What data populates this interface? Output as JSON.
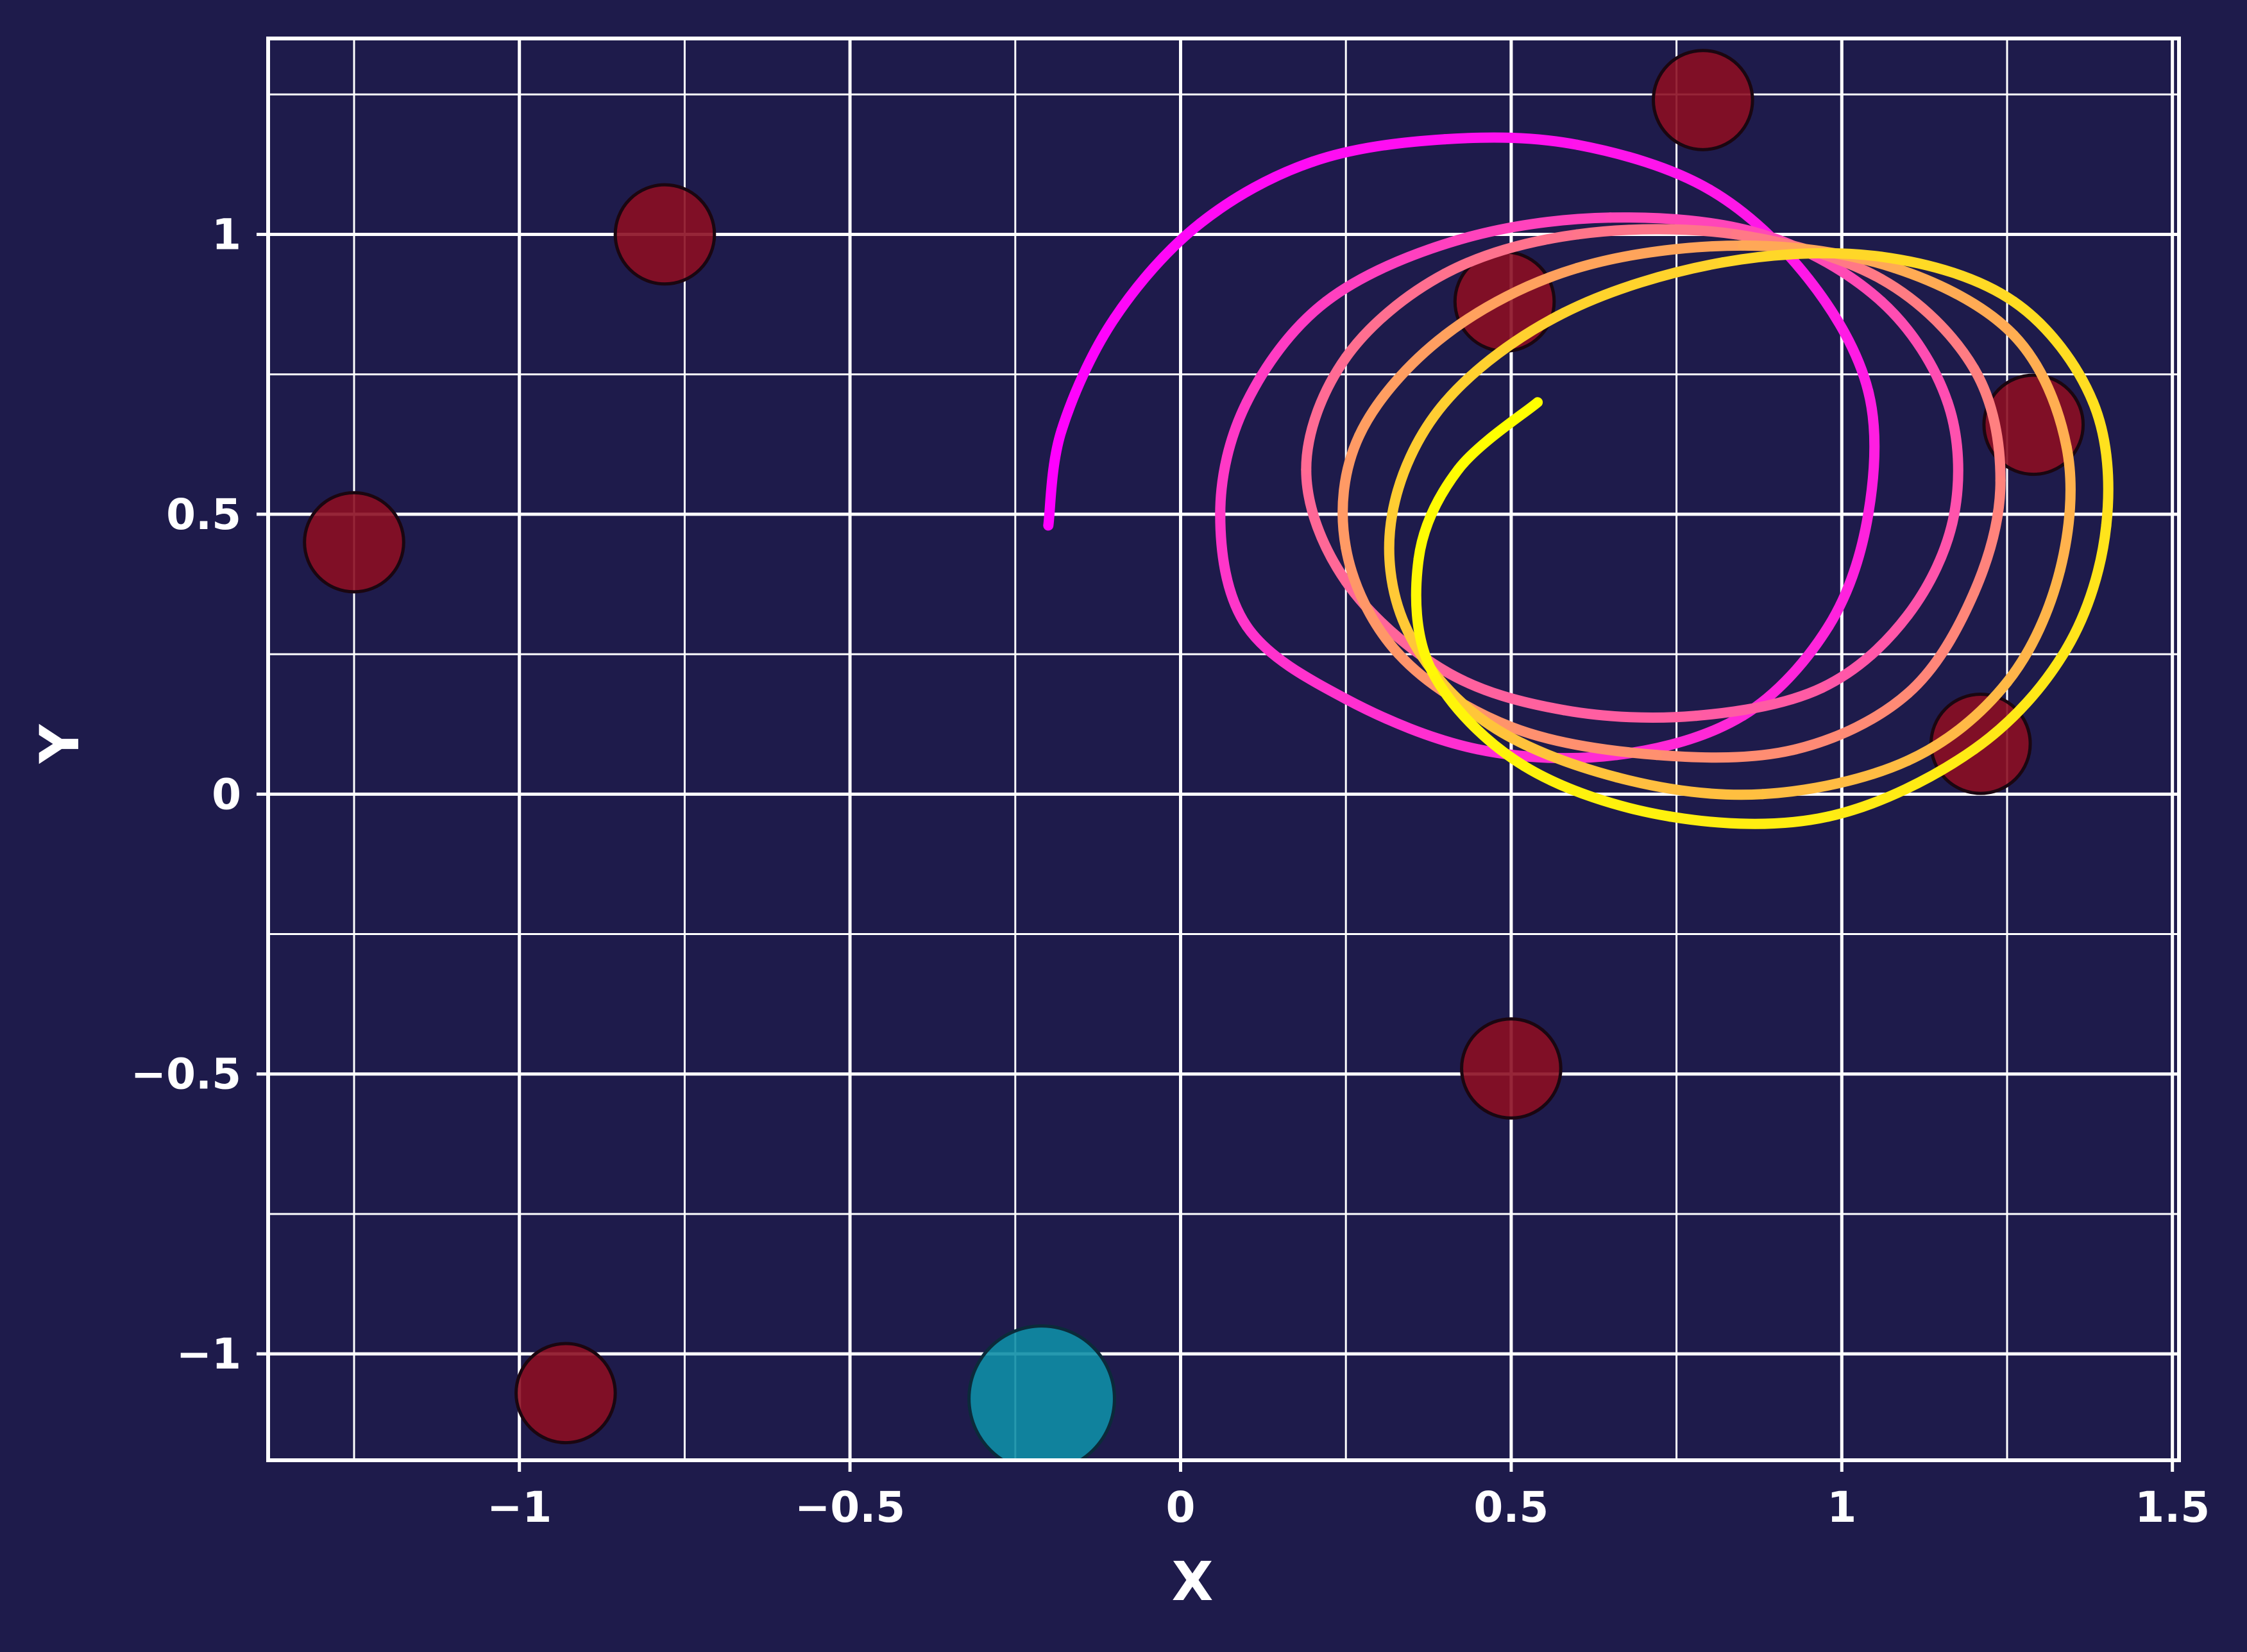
{
  "chart_data": {
    "type": "scatter",
    "title": "",
    "xlabel": "X",
    "ylabel": "Y",
    "xlim": [
      -1.38,
      1.51
    ],
    "ylim": [
      -1.19,
      1.35
    ],
    "x_ticks": [
      -1,
      -0.5,
      0,
      0.5,
      1,
      1.5
    ],
    "x_tick_labels": [
      "−1",
      "−0.5",
      "0",
      "0.5",
      "1",
      "1.5"
    ],
    "y_ticks": [
      -1,
      -0.5,
      0,
      0.5,
      1
    ],
    "y_tick_labels": [
      "−1",
      "−0.5",
      "0",
      "0.5",
      "1"
    ],
    "grid": true,
    "legend": "none",
    "colors": {
      "background": "#1e1b4b",
      "grid": "#ffffff",
      "obstacle": "#8b0e22",
      "goal": "#0e8ea6",
      "path_start": "#ff00ff",
      "path_end": "#ffff00"
    },
    "obstacles": [
      {
        "x": -1.25,
        "y": 0.45,
        "r": 0.075
      },
      {
        "x": -0.78,
        "y": 1.0,
        "r": 0.075
      },
      {
        "x": -0.93,
        "y": -1.07,
        "r": 0.075
      },
      {
        "x": 0.49,
        "y": 0.88,
        "r": 0.075
      },
      {
        "x": 0.79,
        "y": 1.24,
        "r": 0.075
      },
      {
        "x": 1.29,
        "y": 0.66,
        "r": 0.075
      },
      {
        "x": 1.21,
        "y": 0.09,
        "r": 0.075
      },
      {
        "x": 0.5,
        "y": -0.49,
        "r": 0.075
      }
    ],
    "goal": {
      "x": -0.21,
      "y": -1.08,
      "r": 0.11
    },
    "trajectory": [
      [
        -0.2,
        0.48
      ],
      [
        -0.18,
        0.65
      ],
      [
        -0.1,
        0.85
      ],
      [
        0.03,
        1.02
      ],
      [
        0.2,
        1.13
      ],
      [
        0.4,
        1.17
      ],
      [
        0.6,
        1.16
      ],
      [
        0.8,
        1.08
      ],
      [
        0.95,
        0.92
      ],
      [
        1.04,
        0.72
      ],
      [
        1.04,
        0.5
      ],
      [
        0.98,
        0.3
      ],
      [
        0.85,
        0.14
      ],
      [
        0.66,
        0.07
      ],
      [
        0.45,
        0.08
      ],
      [
        0.25,
        0.17
      ],
      [
        0.1,
        0.3
      ],
      [
        0.06,
        0.5
      ],
      [
        0.1,
        0.7
      ],
      [
        0.22,
        0.88
      ],
      [
        0.42,
        0.99
      ],
      [
        0.65,
        1.03
      ],
      [
        0.88,
        1.0
      ],
      [
        1.06,
        0.88
      ],
      [
        1.16,
        0.7
      ],
      [
        1.17,
        0.5
      ],
      [
        1.1,
        0.32
      ],
      [
        0.97,
        0.19
      ],
      [
        0.78,
        0.14
      ],
      [
        0.58,
        0.15
      ],
      [
        0.4,
        0.22
      ],
      [
        0.25,
        0.38
      ],
      [
        0.19,
        0.58
      ],
      [
        0.25,
        0.78
      ],
      [
        0.4,
        0.93
      ],
      [
        0.6,
        1.0
      ],
      [
        0.84,
        1.0
      ],
      [
        1.06,
        0.92
      ],
      [
        1.2,
        0.76
      ],
      [
        1.24,
        0.56
      ],
      [
        1.2,
        0.36
      ],
      [
        1.1,
        0.18
      ],
      [
        0.93,
        0.08
      ],
      [
        0.72,
        0.07
      ],
      [
        0.5,
        0.12
      ],
      [
        0.33,
        0.25
      ],
      [
        0.25,
        0.44
      ],
      [
        0.27,
        0.64
      ],
      [
        0.4,
        0.82
      ],
      [
        0.6,
        0.94
      ],
      [
        0.85,
        0.98
      ],
      [
        1.08,
        0.94
      ],
      [
        1.26,
        0.82
      ],
      [
        1.34,
        0.62
      ],
      [
        1.33,
        0.4
      ],
      [
        1.25,
        0.2
      ],
      [
        1.1,
        0.06
      ],
      [
        0.88,
        0.0
      ],
      [
        0.66,
        0.03
      ],
      [
        0.46,
        0.13
      ],
      [
        0.34,
        0.3
      ],
      [
        0.32,
        0.5
      ],
      [
        0.4,
        0.7
      ],
      [
        0.58,
        0.86
      ],
      [
        0.82,
        0.95
      ],
      [
        1.06,
        0.96
      ],
      [
        1.26,
        0.88
      ],
      [
        1.38,
        0.7
      ],
      [
        1.4,
        0.48
      ],
      [
        1.34,
        0.26
      ],
      [
        1.2,
        0.08
      ],
      [
        0.98,
        -0.04
      ],
      [
        0.74,
        -0.04
      ],
      [
        0.52,
        0.05
      ],
      [
        0.38,
        0.22
      ],
      [
        0.36,
        0.42
      ],
      [
        0.42,
        0.58
      ],
      [
        0.54,
        0.7
      ]
    ]
  }
}
